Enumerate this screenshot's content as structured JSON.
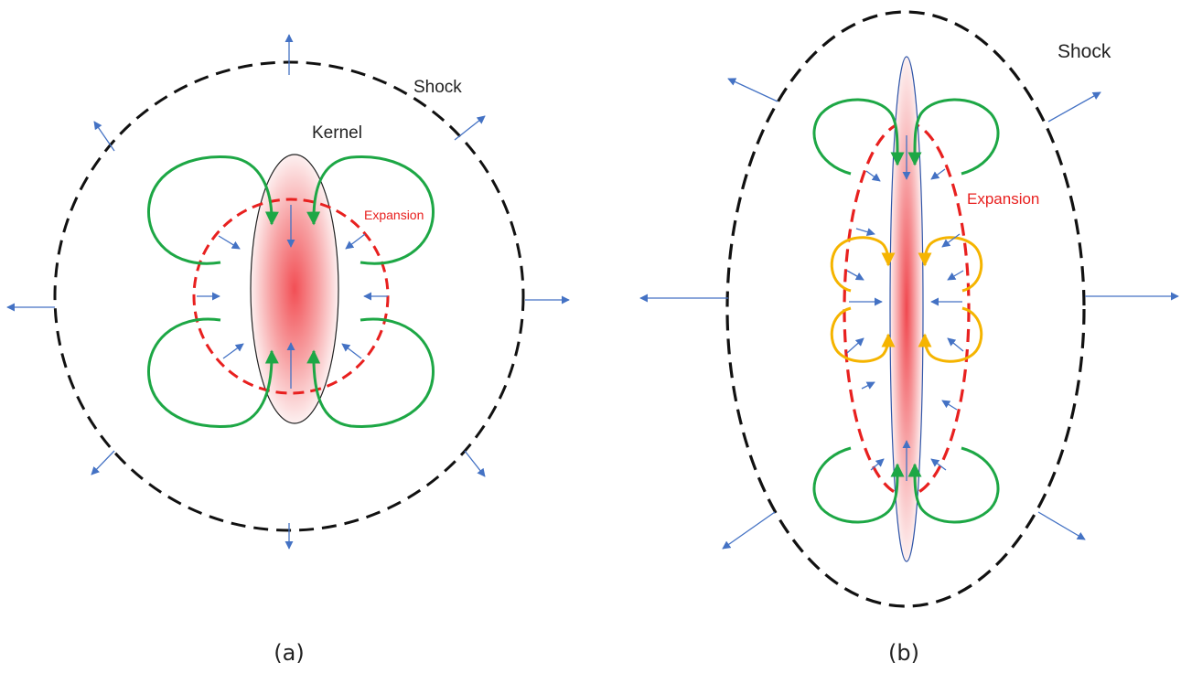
{
  "colors": {
    "shock": "#111111",
    "expansion": "#e8201f",
    "vortex": "#1da745",
    "secondary_vortex": "#f5b400",
    "flow_arrow": "#4472c4",
    "kernel_core": "#f24f55",
    "kernel_outline": "#222222"
  },
  "icons": {
    "arrow": "flow-arrow-icon"
  },
  "panel_a": {
    "shock_label": "Shock",
    "kernel_label": "Kernel",
    "expansion_label": "Expansion",
    "caption": "(a)"
  },
  "panel_b": {
    "shock_label": "Shock",
    "expansion_label": "Expansion",
    "caption": "(b)"
  }
}
